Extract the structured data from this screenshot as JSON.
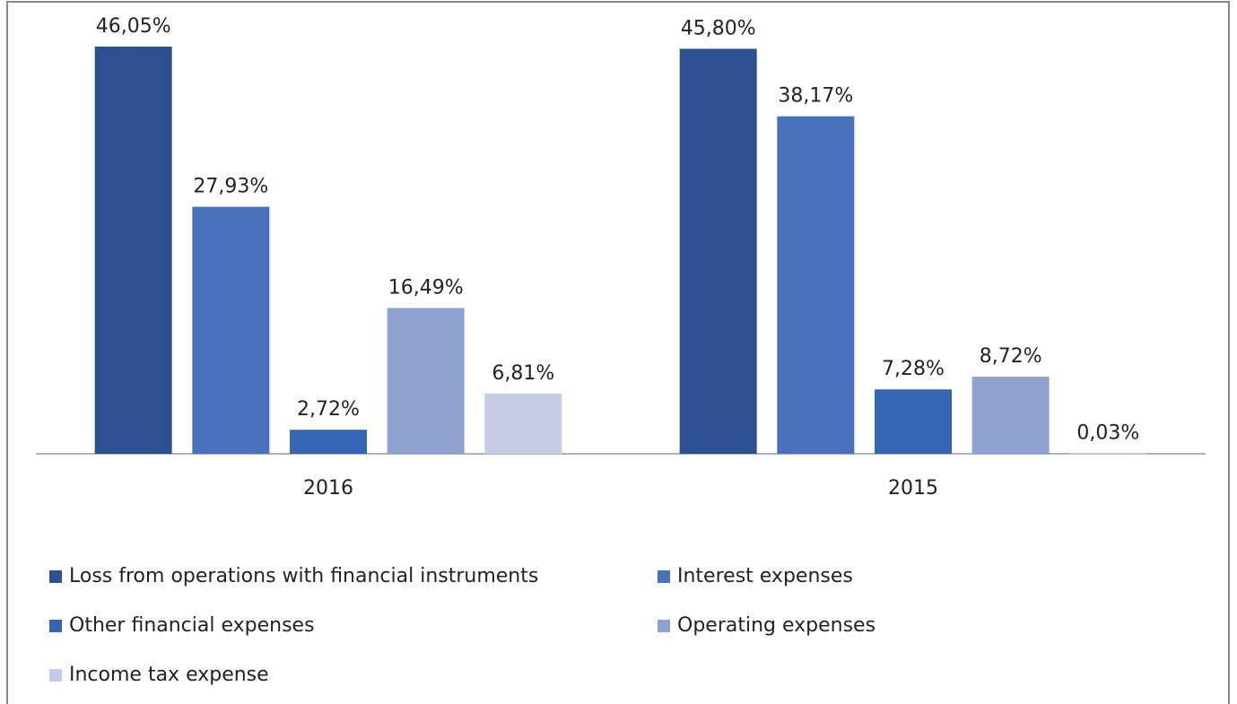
{
  "chart_data": {
    "type": "bar",
    "categories": [
      "2016",
      "2015"
    ],
    "series": [
      {
        "name": "Loss from operations with financial instruments",
        "color": "#2c5090",
        "values": [
          46.05,
          45.8
        ],
        "value_labels": [
          "46,05%",
          "45,80%"
        ]
      },
      {
        "name": "Interest expenses",
        "color": "#4a71bb",
        "values": [
          27.93,
          38.17
        ],
        "value_labels": [
          "27,93%",
          "38,17%"
        ]
      },
      {
        "name": "Other financial expenses",
        "color": "#3565b5",
        "values": [
          2.72,
          7.28
        ],
        "value_labels": [
          "2,72%",
          "7,28%"
        ]
      },
      {
        "name": "Operating expenses",
        "color": "#8ea2d2",
        "values": [
          16.49,
          8.72
        ],
        "value_labels": [
          "16,49%",
          "8,72%"
        ]
      },
      {
        "name": "Income tax expense",
        "color": "#c4cce6",
        "values": [
          6.81,
          0.03
        ],
        "value_labels": [
          "6,81%",
          "0,03%"
        ]
      }
    ],
    "ylim": [
      0,
      50
    ],
    "legend": "bottom"
  }
}
